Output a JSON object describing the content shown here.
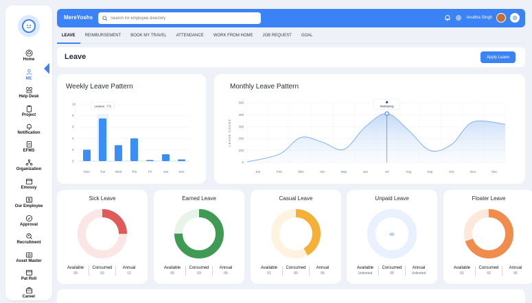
{
  "sidebar": {
    "items": [
      {
        "label": "Home",
        "icon": "home-icon"
      },
      {
        "label": "ME",
        "icon": "user-icon",
        "active": true
      },
      {
        "label": "Help Desk",
        "icon": "help-desk-icon"
      },
      {
        "label": "Project",
        "icon": "clipboard-icon"
      },
      {
        "label": "Notification",
        "icon": "bell-icon"
      },
      {
        "label": "EFMS",
        "icon": "document-icon"
      },
      {
        "label": "Organization",
        "icon": "organization-icon"
      },
      {
        "label": "Emossy",
        "icon": "calendar-icon"
      },
      {
        "label": "Our Employee",
        "icon": "id-card-icon"
      },
      {
        "label": "Approval",
        "icon": "check-circle-icon"
      },
      {
        "label": "Recruitment",
        "icon": "search-person-icon"
      },
      {
        "label": "Asset Master",
        "icon": "camera-icon"
      },
      {
        "label": "Pat Roll",
        "icon": "wallet-icon"
      },
      {
        "label": "Career",
        "icon": "briefcase-icon"
      }
    ]
  },
  "header": {
    "brand": "MereYoshs",
    "search_placeholder": "Search for employee directory",
    "user_name": "Anubha Singh"
  },
  "tabs": [
    "LEAVE",
    "REIMBURSEMENT",
    "BOOK MY TRAVEL",
    "ATTENDANCE",
    "WORK FROM HOME",
    "JOB REQUEST",
    "GOAL"
  ],
  "page": {
    "title": "Leave",
    "apply_label": "Apply Leave"
  },
  "weekly": {
    "title": "Weekly Leave Pattern",
    "tooltip_label": "Leaves",
    "tooltip_value": "7.5"
  },
  "monthly": {
    "title": "Monthly Leave Pattern",
    "tooltip_label": "Marketing"
  },
  "chart_data": [
    {
      "type": "bar",
      "title": "Weekly Leave Pattern",
      "categories": [
        "Mon",
        "Tue",
        "Wed",
        "Thu",
        "Fri",
        "Sat",
        "Sun"
      ],
      "values": [
        2,
        7.5,
        2.8,
        4,
        0.2,
        1.2,
        0.3
      ],
      "yticks": [
        0,
        2,
        4,
        6,
        8,
        10
      ],
      "ylim": [
        0,
        10
      ],
      "highlight_index": 1,
      "color": "#3b8ef3"
    },
    {
      "type": "area",
      "title": "Monthly Leave Pattern",
      "ylabel": "LEAVE COUNT",
      "categories": [
        "Jan",
        "Feb",
        "Mar",
        "Apr",
        "May",
        "Jun",
        "Jul",
        "Aug",
        "Sep",
        "Oct",
        "Nov",
        "Dec"
      ],
      "values": [
        5,
        70,
        210,
        170,
        110,
        300,
        410,
        270,
        100,
        150,
        340,
        320
      ],
      "yticks": [
        0,
        100,
        200,
        300,
        400,
        500
      ],
      "ylim": [
        0,
        500
      ],
      "highlight_index": 6,
      "color": "#7fb0ef"
    }
  ],
  "leave_types": [
    {
      "name": "Sick Leave",
      "color": "#e05a5a",
      "bg": "#fbe6e6",
      "fraction": 0.25,
      "available_label": "Available",
      "available": "09",
      "consumed_label": "Consumed",
      "consumed": "03",
      "annual_label": "Annual",
      "annual": "12"
    },
    {
      "name": "Earned Leave",
      "color": "#3f9b54",
      "bg": "#e8f3ea",
      "fraction": 0.75,
      "available_label": "Available",
      "available": "05",
      "consumed_label": "Consumed",
      "consumed": "03",
      "annual_label": "Annual",
      "annual": "05"
    },
    {
      "name": "Casual Leave",
      "color": "#f5b137",
      "bg": "#fef3de",
      "fraction": 0.42,
      "available_label": "Available",
      "available": "01",
      "consumed_label": "Consumed",
      "consumed": "00",
      "annual_label": "Annual",
      "annual": "05"
    },
    {
      "name": "Unpaid Leave",
      "color": "#5b9cf5",
      "bg": "#e8f1fd",
      "fraction": 0,
      "available_label": "Available",
      "available": "Unlimited",
      "consumed_label": "Consumed",
      "consumed": "05",
      "annual_label": "Annual",
      "annual": "Unlimited",
      "infinity": "∞"
    },
    {
      "name": "Floater Leave",
      "color": "#ef8c4e",
      "bg": "#fde8db",
      "fraction": 0.7,
      "available_label": "Available",
      "available": "01",
      "consumed_label": "Consumed",
      "consumed": "02",
      "annual_label": "Annual",
      "annual": "05"
    }
  ]
}
